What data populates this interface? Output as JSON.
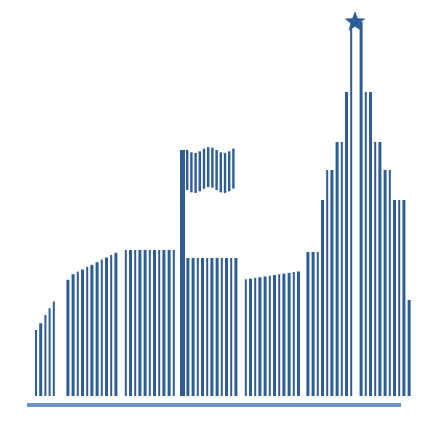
{
  "logo": {
    "colors": {
      "bars": "#2e5c94",
      "star": "#2e5c94",
      "baseline": "#6b93c9",
      "background": "#ffffff"
    },
    "icons": [
      "star-icon",
      "flag-icon"
    ]
  }
}
